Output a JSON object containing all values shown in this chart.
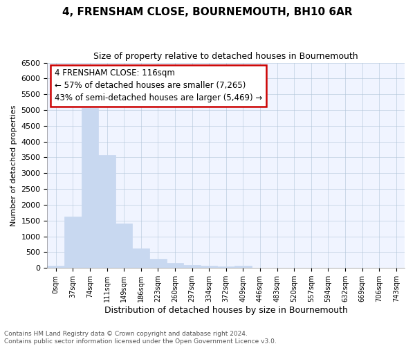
{
  "title": "4, FRENSHAM CLOSE, BOURNEMOUTH, BH10 6AR",
  "subtitle": "Size of property relative to detached houses in Bournemouth",
  "xlabel": "Distribution of detached houses by size in Bournemouth",
  "ylabel": "Number of detached properties",
  "bar_color": "#c8d8f0",
  "bar_edge_color": "#c8d8f0",
  "plot_bg_color": "#f0f4ff",
  "background_color": "#ffffff",
  "grid_color": "#b0c4d8",
  "categories": [
    "0sqm",
    "37sqm",
    "74sqm",
    "111sqm",
    "149sqm",
    "186sqm",
    "223sqm",
    "260sqm",
    "297sqm",
    "334sqm",
    "372sqm",
    "409sqm",
    "446sqm",
    "483sqm",
    "520sqm",
    "557sqm",
    "594sqm",
    "632sqm",
    "669sqm",
    "706sqm",
    "743sqm"
  ],
  "values": [
    75,
    1625,
    5075,
    3575,
    1400,
    625,
    300,
    150,
    90,
    60,
    50,
    75,
    0,
    0,
    0,
    0,
    0,
    0,
    0,
    0,
    0
  ],
  "ylim": [
    0,
    6500
  ],
  "yticks": [
    0,
    500,
    1000,
    1500,
    2000,
    2500,
    3000,
    3500,
    4000,
    4500,
    5000,
    5500,
    6000,
    6500
  ],
  "annotation_text": "4 FRENSHAM CLOSE: 116sqm\n← 57% of detached houses are smaller (7,265)\n43% of semi-detached houses are larger (5,469) →",
  "annotation_box_color": "#ffffff",
  "annotation_border_color": "#cc0000",
  "footnote": "Contains HM Land Registry data © Crown copyright and database right 2024.\nContains public sector information licensed under the Open Government Licence v3.0.",
  "bar_width": 1.0,
  "title_fontsize": 11,
  "subtitle_fontsize": 9,
  "ylabel_fontsize": 8,
  "xlabel_fontsize": 9,
  "tick_fontsize": 8,
  "annotation_fontsize": 8.5
}
